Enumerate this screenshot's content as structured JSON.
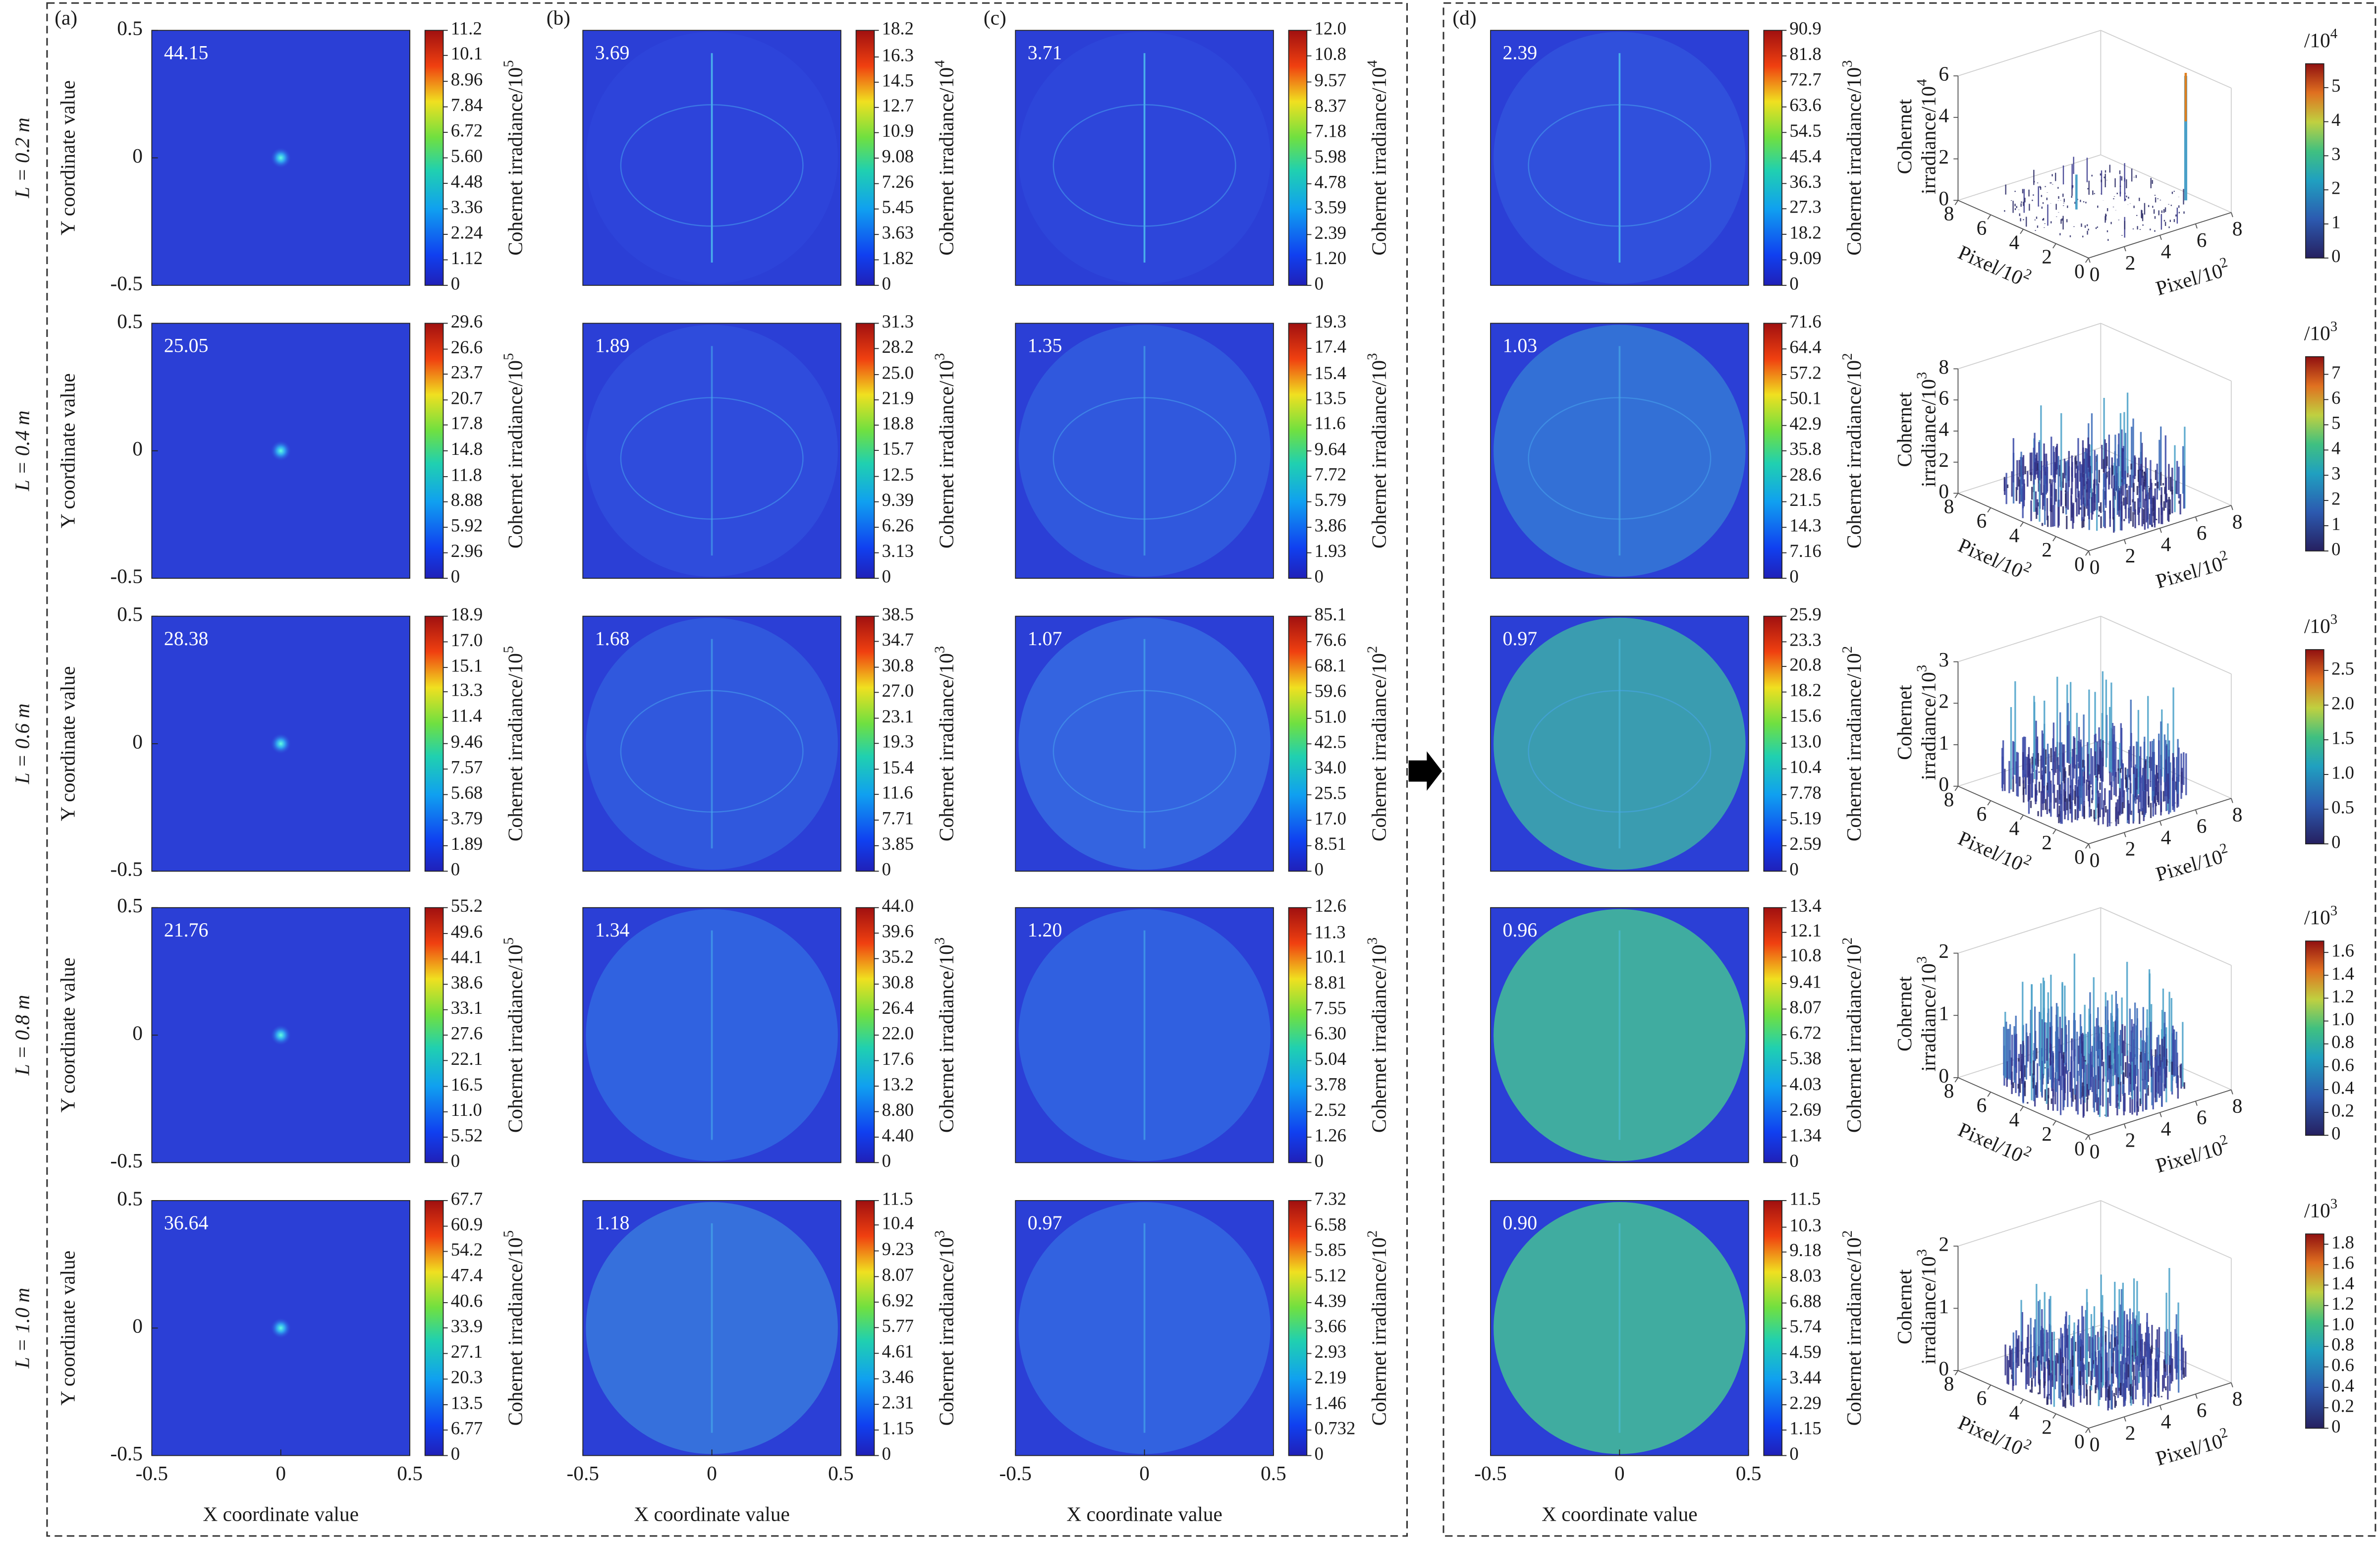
{
  "panel_labels": [
    "(a)",
    "(b)",
    "(c)",
    "(d)"
  ],
  "row_labels": [
    "L = 0.2 m",
    "L = 0.4 m",
    "L = 0.6 m",
    "L = 0.8 m",
    "L = 1.0 m"
  ],
  "chart_data": [
    {
      "type": "heatmap",
      "annotation": "44.15",
      "ylabel": "Y coordinate value",
      "ylim": [
        -0.5,
        0.5
      ],
      "yticks": [
        -0.5,
        0,
        0.5
      ],
      "colorbar": {
        "label": "Cohernet irradiance/10",
        "exp": "5",
        "clim": [
          0,
          11.2
        ],
        "ticks": [
          0,
          1.12,
          2.24,
          3.36,
          4.48,
          {
            "value": 5.6,
            "label": "5.60"
          },
          6.72,
          7.84,
          8.96,
          10.1,
          11.2
        ]
      }
    },
    {
      "type": "heatmap",
      "annotation": "3.69",
      "colorbar": {
        "label": "Cohernet irradiance/10",
        "exp": "4",
        "clim": [
          0,
          18.2
        ],
        "ticks": [
          0,
          1.82,
          3.63,
          5.45,
          7.26,
          9.08,
          10.9,
          12.7,
          14.5,
          16.3,
          18.2
        ]
      }
    },
    {
      "type": "heatmap",
      "annotation": "3.71",
      "colorbar": {
        "label": "Cohernet irradiance/10",
        "exp": "4",
        "clim": [
          0,
          12
        ],
        "ticks": [
          0,
          {
            "value": 1.2,
            "label": "1.20"
          },
          2.39,
          3.59,
          4.78,
          5.98,
          7.18,
          8.37,
          9.57,
          10.8,
          {
            "value": 12,
            "label": "12.0"
          }
        ]
      }
    },
    {
      "type": "heatmap",
      "annotation": "2.39",
      "colorbar": {
        "label": "Cohernet irradiance/10",
        "exp": "3",
        "clim": [
          0,
          90.9
        ],
        "ticks": [
          0,
          9.09,
          18.2,
          27.3,
          36.3,
          45.4,
          54.5,
          63.6,
          72.7,
          81.8,
          90.9
        ]
      }
    },
    {
      "type": "surface3d",
      "zlabel": "Cohernet",
      "zlabel2": "irradiance/10",
      "zexp": "4",
      "zlim": [
        0,
        6
      ],
      "zticks": [
        0,
        2,
        4,
        6
      ],
      "xlabel": "Pixel/10",
      "xexp": "2",
      "xlim": [
        0,
        8
      ],
      "xticks": [
        0,
        2,
        4,
        6,
        8
      ],
      "ylabel": "Pixel/10",
      "yexp": "2",
      "ylim": [
        0,
        8
      ],
      "yticks": [
        0,
        2,
        4,
        6,
        8
      ],
      "colorbar": {
        "label": "/10",
        "exp": "4",
        "clim": [
          0,
          5.7
        ],
        "ticks": [
          0,
          1,
          2,
          3,
          4,
          5
        ]
      }
    },
    {
      "type": "heatmap",
      "annotation": "25.05",
      "ylabel": "Y coordinate value",
      "ylim": [
        -0.5,
        0.5
      ],
      "yticks": [
        -0.5,
        0,
        0.5
      ],
      "colorbar": {
        "label": "Cohernet irradiance/10",
        "exp": "5",
        "clim": [
          0,
          29.6
        ],
        "ticks": [
          0,
          2.96,
          5.92,
          8.88,
          11.8,
          14.8,
          17.8,
          20.7,
          23.7,
          26.6,
          29.6
        ]
      }
    },
    {
      "type": "heatmap",
      "annotation": "1.89",
      "colorbar": {
        "label": "Cohernet irradiance/10",
        "exp": "3",
        "clim": [
          0,
          31.3
        ],
        "ticks": [
          0,
          3.13,
          6.26,
          9.39,
          12.5,
          15.7,
          18.8,
          21.9,
          {
            "value": 25,
            "label": "25.0"
          },
          28.2,
          31.3
        ]
      }
    },
    {
      "type": "heatmap",
      "annotation": "1.35",
      "colorbar": {
        "label": "Cohernet irradiance/10",
        "exp": "3",
        "clim": [
          0,
          19.3
        ],
        "ticks": [
          0,
          1.93,
          3.86,
          5.79,
          7.72,
          9.64,
          11.6,
          13.5,
          15.4,
          17.4,
          19.3
        ]
      }
    },
    {
      "type": "heatmap",
      "annotation": "1.03",
      "colorbar": {
        "label": "Cohernet irradiance/10",
        "exp": "2",
        "clim": [
          0,
          71.6
        ],
        "ticks": [
          0,
          7.16,
          14.3,
          21.5,
          28.6,
          35.8,
          42.9,
          50.1,
          57.2,
          64.4,
          71.6
        ]
      }
    },
    {
      "type": "surface3d",
      "zlabel": "Cohernet",
      "zlabel2": "irradiance/10",
      "zexp": "3",
      "zlim": [
        0,
        8
      ],
      "zticks": [
        0,
        2,
        4,
        6,
        8
      ],
      "xlabel": "Pixel/10",
      "xexp": "2",
      "xlim": [
        0,
        8
      ],
      "xticks": [
        0,
        2,
        4,
        6,
        8
      ],
      "ylabel": "Pixel/10",
      "yexp": "2",
      "ylim": [
        0,
        8
      ],
      "yticks": [
        0,
        2,
        4,
        6,
        8
      ],
      "colorbar": {
        "label": "/10",
        "exp": "3",
        "clim": [
          0,
          7.7
        ],
        "ticks": [
          0,
          1,
          2,
          3,
          4,
          5,
          6,
          7
        ]
      }
    },
    {
      "type": "heatmap",
      "annotation": "28.38",
      "ylabel": "Y coordinate value",
      "ylim": [
        -0.5,
        0.5
      ],
      "yticks": [
        -0.5,
        0,
        0.5
      ],
      "colorbar": {
        "label": "Cohernet irradiance/10",
        "exp": "5",
        "clim": [
          0,
          18.9
        ],
        "ticks": [
          0,
          1.89,
          3.79,
          5.68,
          7.57,
          9.46,
          11.4,
          13.3,
          15.1,
          {
            "value": 17,
            "label": "17.0"
          },
          18.9
        ]
      }
    },
    {
      "type": "heatmap",
      "annotation": "1.68",
      "colorbar": {
        "label": "Cohernet irradiance/10",
        "exp": "3",
        "clim": [
          0,
          38.5
        ],
        "ticks": [
          0,
          3.85,
          7.71,
          11.6,
          15.4,
          19.3,
          23.1,
          {
            "value": 27,
            "label": "27.0"
          },
          30.8,
          34.7,
          38.5
        ]
      }
    },
    {
      "type": "heatmap",
      "annotation": "1.07",
      "colorbar": {
        "label": "Cohernet irradiance/10",
        "exp": "2",
        "clim": [
          0,
          85.1
        ],
        "ticks": [
          0,
          8.51,
          {
            "value": 17,
            "label": "17.0"
          },
          25.5,
          {
            "value": 34,
            "label": "34.0"
          },
          42.5,
          {
            "value": 51,
            "label": "51.0"
          },
          59.6,
          68.1,
          76.6,
          85.1
        ]
      }
    },
    {
      "type": "heatmap",
      "annotation": "0.97",
      "colorbar": {
        "label": "Cohernet irradiance/10",
        "exp": "2",
        "clim": [
          0,
          25.9
        ],
        "ticks": [
          0,
          2.59,
          5.19,
          7.78,
          10.4,
          {
            "value": 13,
            "label": "13.0"
          },
          15.6,
          18.2,
          20.8,
          23.3,
          25.9
        ]
      }
    },
    {
      "type": "surface3d",
      "zlabel": "Cohernet",
      "zlabel2": "irradiance/10",
      "zexp": "3",
      "zlim": [
        0,
        3
      ],
      "zticks": [
        0,
        1,
        2,
        3
      ],
      "xlabel": "Pixel/10",
      "xexp": "2",
      "xlim": [
        0,
        8
      ],
      "xticks": [
        0,
        2,
        4,
        6,
        8
      ],
      "ylabel": "Pixel/10",
      "yexp": "2",
      "ylim": [
        0,
        8
      ],
      "yticks": [
        0,
        2,
        4,
        6,
        8
      ],
      "colorbar": {
        "label": "/10",
        "exp": "3",
        "clim": [
          0,
          2.8
        ],
        "ticks": [
          0,
          0.5,
          {
            "value": 1,
            "label": "1.0"
          },
          1.5,
          {
            "value": 2,
            "label": "2.0"
          },
          2.5
        ]
      }
    },
    {
      "type": "heatmap",
      "annotation": "21.76",
      "ylabel": "Y coordinate value",
      "ylim": [
        -0.5,
        0.5
      ],
      "yticks": [
        -0.5,
        0,
        0.5
      ],
      "colorbar": {
        "label": "Cohernet irradiance/10",
        "exp": "5",
        "clim": [
          0,
          55.2
        ],
        "ticks": [
          0,
          5.52,
          {
            "value": 11,
            "label": "11.0"
          },
          16.5,
          22.1,
          27.6,
          33.1,
          38.6,
          44.1,
          49.6,
          55.2
        ]
      }
    },
    {
      "type": "heatmap",
      "annotation": "1.34",
      "colorbar": {
        "label": "Cohernet irradiance/10",
        "exp": "3",
        "clim": [
          0,
          44
        ],
        "ticks": [
          0,
          {
            "value": 4.4,
            "label": "4.40"
          },
          {
            "value": 8.8,
            "label": "8.80"
          },
          13.2,
          17.6,
          {
            "value": 22,
            "label": "22.0"
          },
          26.4,
          30.8,
          35.2,
          39.6,
          {
            "value": 44,
            "label": "44.0"
          }
        ]
      }
    },
    {
      "type": "heatmap",
      "annotation": "1.20",
      "colorbar": {
        "label": "Cohernet irradiance/10",
        "exp": "3",
        "clim": [
          0,
          12.6
        ],
        "ticks": [
          0,
          1.26,
          2.52,
          3.78,
          5.04,
          {
            "value": 6.3,
            "label": "6.30"
          },
          7.55,
          8.81,
          10.1,
          11.3,
          12.6
        ]
      }
    },
    {
      "type": "heatmap",
      "annotation": "0.96",
      "colorbar": {
        "label": "Cohernet irradiance/10",
        "exp": "2",
        "clim": [
          0,
          13.4
        ],
        "ticks": [
          0,
          1.34,
          2.69,
          4.03,
          5.38,
          6.72,
          8.07,
          9.41,
          10.8,
          12.1,
          13.4
        ]
      }
    },
    {
      "type": "surface3d",
      "zlabel": "Cohernet",
      "zlabel2": "irradiance/10",
      "zexp": "3",
      "zlim": [
        0,
        2
      ],
      "zticks": [
        0,
        1,
        2
      ],
      "xlabel": "Pixel/10",
      "xexp": "2",
      "xlim": [
        0,
        8
      ],
      "xticks": [
        0,
        2,
        4,
        6,
        8
      ],
      "ylabel": "Pixel/10",
      "yexp": "2",
      "ylim": [
        0,
        8
      ],
      "yticks": [
        0,
        2,
        4,
        6,
        8
      ],
      "colorbar": {
        "label": "/10",
        "exp": "3",
        "clim": [
          0,
          1.7
        ],
        "ticks": [
          0,
          0.2,
          0.4,
          0.6,
          0.8,
          {
            "value": 1,
            "label": "1.0"
          },
          1.2,
          1.4,
          1.6
        ]
      }
    },
    {
      "type": "heatmap",
      "annotation": "36.64",
      "ylabel": "Y coordinate value",
      "ylim": [
        -0.5,
        0.5
      ],
      "yticks": [
        -0.5,
        0,
        0.5
      ],
      "xlabel": "X coordinate value",
      "xlim": [
        -0.5,
        0.5
      ],
      "xticks": [
        -0.5,
        0,
        0.5
      ],
      "colorbar": {
        "label": "Cohernet irradiance/10",
        "exp": "5",
        "clim": [
          0,
          67.7
        ],
        "ticks": [
          0,
          6.77,
          13.5,
          20.3,
          27.1,
          33.9,
          40.6,
          47.4,
          54.2,
          60.9,
          67.7
        ]
      }
    },
    {
      "type": "heatmap",
      "annotation": "1.18",
      "xlabel": "X coordinate value",
      "xlim": [
        -0.5,
        0.5
      ],
      "xticks": [
        -0.5,
        0,
        0.5
      ],
      "colorbar": {
        "label": "Cohernet irradiance/10",
        "exp": "3",
        "clim": [
          0,
          11.5
        ],
        "ticks": [
          0,
          1.15,
          2.31,
          3.46,
          4.61,
          5.77,
          6.92,
          8.07,
          9.23,
          10.4,
          11.5
        ]
      }
    },
    {
      "type": "heatmap",
      "annotation": "0.97",
      "xlabel": "X coordinate value",
      "xlim": [
        -0.5,
        0.5
      ],
      "xticks": [
        -0.5,
        0,
        0.5
      ],
      "colorbar": {
        "label": "Cohernet irradiance/10",
        "exp": "2",
        "clim": [
          0,
          7.32
        ],
        "ticks": [
          0,
          0.732,
          1.46,
          2.19,
          2.93,
          3.66,
          4.39,
          5.12,
          5.85,
          6.58,
          7.32
        ]
      }
    },
    {
      "type": "heatmap",
      "annotation": "0.90",
      "xlabel": "X coordinate value",
      "xlim": [
        -0.5,
        0.5
      ],
      "xticks": [
        -0.5,
        0,
        0.5
      ],
      "colorbar": {
        "label": "Cohernet irradiance/10",
        "exp": "2",
        "clim": [
          0,
          11.5
        ],
        "ticks": [
          0,
          1.15,
          2.29,
          3.44,
          4.59,
          5.74,
          6.88,
          8.03,
          9.18,
          10.3,
          11.5
        ]
      }
    },
    {
      "type": "surface3d",
      "zlabel": "Cohernet",
      "zlabel2": "irradiance/10",
      "zexp": "3",
      "zlim": [
        0,
        2
      ],
      "zticks": [
        0,
        1,
        2
      ],
      "xlabel": "Pixel/10",
      "xexp": "2",
      "xlim": [
        0,
        8
      ],
      "xticks": [
        0,
        2,
        4,
        6,
        8
      ],
      "ylabel": "Pixel/10",
      "yexp": "2",
      "ylim": [
        0,
        8
      ],
      "yticks": [
        0,
        2,
        4,
        6,
        8
      ],
      "colorbar": {
        "label": "/10",
        "exp": "3",
        "clim": [
          0,
          1.9
        ],
        "ticks": [
          0,
          0.2,
          0.4,
          0.6,
          0.8,
          {
            "value": 1,
            "label": "1.0"
          },
          1.2,
          1.4,
          1.6,
          1.8
        ]
      }
    }
  ]
}
